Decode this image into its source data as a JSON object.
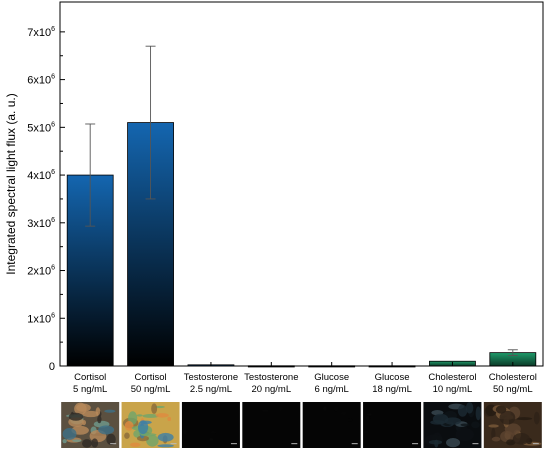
{
  "chart_data": {
    "type": "bar",
    "ylabel": "Integrated spectral light flux  (a. u.)",
    "ylim": [
      0,
      7500000
    ],
    "yticks": [
      {
        "base": "0",
        "exp": ""
      },
      {
        "base": "1x10",
        "exp": "6"
      },
      {
        "base": "2x10",
        "exp": "6"
      },
      {
        "base": "3x10",
        "exp": "6"
      },
      {
        "base": "4x10",
        "exp": "6"
      },
      {
        "base": "5x10",
        "exp": "6"
      },
      {
        "base": "6x10",
        "exp": "6"
      },
      {
        "base": "7x10",
        "exp": "6"
      }
    ],
    "ytick_values": [
      0,
      1000000,
      2000000,
      3000000,
      4000000,
      5000000,
      6000000,
      7000000
    ],
    "categories": [
      {
        "line1": "Cortisol",
        "line2": "5 ng/mL"
      },
      {
        "line1": "Cortisol",
        "line2": "50 ng/mL"
      },
      {
        "line1": "Testosterone",
        "line2": "2.5 ng/mL"
      },
      {
        "line1": "Testosterone",
        "line2": "20 ng/mL"
      },
      {
        "line1": "Glucose",
        "line2": "6 ng/mL"
      },
      {
        "line1": "Glucose",
        "line2": "18 ng/mL"
      },
      {
        "line1": "Cholesterol",
        "line2": "10 ng/mL"
      },
      {
        "line1": "Cholesterol",
        "line2": "50 ng/mL"
      }
    ],
    "values": [
      4000000,
      5100000,
      25000,
      5000,
      5000,
      5000,
      100000,
      280000
    ],
    "errors": [
      1070000,
      1600000,
      0,
      0,
      0,
      0,
      0,
      60000
    ],
    "bar_groups": [
      "blue",
      "blue",
      "blue",
      "blue",
      "blue",
      "blue",
      "green",
      "green"
    ],
    "colors": {
      "blue_top": "#1466b0",
      "blue_bottom": "#000000",
      "green_top": "#1f9a6a",
      "green_bottom": "#0b3a28",
      "axis": "#000000",
      "errorbar": "#555555"
    },
    "grid": false,
    "legend": "none"
  },
  "images": [
    {
      "name": "cortisol-5-image",
      "tone": "color-low"
    },
    {
      "name": "cortisol-50-image",
      "tone": "color-high"
    },
    {
      "name": "testosterone-2-5-image",
      "tone": "dark"
    },
    {
      "name": "testosterone-20-image",
      "tone": "dark"
    },
    {
      "name": "glucose-6-image",
      "tone": "dark"
    },
    {
      "name": "glucose-18-image",
      "tone": "dark"
    },
    {
      "name": "cholesterol-10-image",
      "tone": "dark-speckle"
    },
    {
      "name": "cholesterol-50-image",
      "tone": "brown-dark"
    }
  ]
}
